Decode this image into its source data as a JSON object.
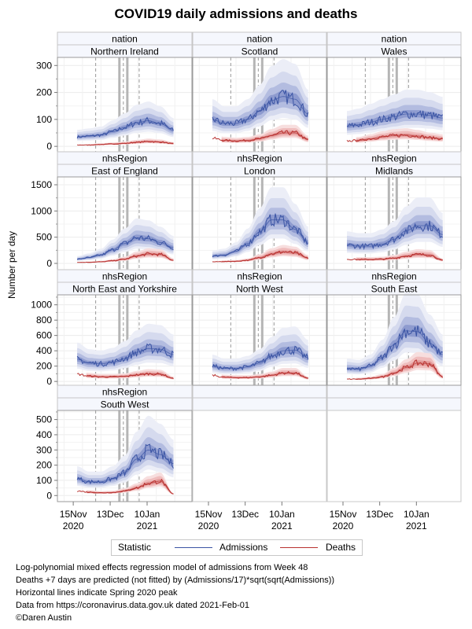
{
  "chart_data": {
    "type": "line",
    "title": "COVID19 daily admissions and deaths",
    "ylabel": "Number per day",
    "xlabel": "",
    "x_ticks": [
      {
        "line1": "15Nov",
        "line2": "2020",
        "day": 0
      },
      {
        "line1": "13Dec",
        "line2": "",
        "day": 28
      },
      {
        "line1": "10Jan",
        "line2": "2021",
        "day": 56
      }
    ],
    "x_range_days": [
      -12,
      90
    ],
    "data_start_day": 3,
    "data_end_day": 76,
    "reference_lines": [
      {
        "day": 17,
        "style": "dashed"
      },
      {
        "day": 35,
        "style": "thick"
      },
      {
        "day": 38,
        "style": "dashed"
      },
      {
        "day": 41,
        "style": "thick"
      },
      {
        "day": 50,
        "style": "dashed"
      }
    ],
    "grid": true,
    "legend": {
      "title": "Statistic",
      "position": "bottom",
      "entries": [
        {
          "name": "Admissions",
          "color": "#3a54a4"
        },
        {
          "name": "Deaths",
          "color": "#b8312f"
        }
      ]
    },
    "panels": [
      {
        "group": "nation",
        "name": "Northern Ireland",
        "row": 0,
        "col": 0,
        "ylim": [
          -20,
          330
        ],
        "yticks": [
          0,
          100,
          200,
          300
        ],
        "admissions_knots": [
          35,
          38,
          42,
          55,
          70,
          88,
          95,
          85,
          60
        ],
        "deaths_knots": [
          5,
          5,
          7,
          9,
          11,
          15,
          18,
          16,
          10
        ]
      },
      {
        "group": "nation",
        "name": "Scotland",
        "row": 0,
        "col": 1,
        "ylim": [
          -20,
          330
        ],
        "yticks": [
          0,
          100,
          200,
          300
        ],
        "admissions_knots": [
          100,
          85,
          85,
          100,
          130,
          170,
          185,
          175,
          120
        ],
        "deaths_knots": [
          30,
          22,
          20,
          22,
          28,
          40,
          50,
          50,
          25
        ]
      },
      {
        "group": "nation",
        "name": "Wales",
        "row": 0,
        "col": 2,
        "ylim": [
          -20,
          330
        ],
        "yticks": [
          0,
          100,
          200,
          300
        ],
        "admissions_knots": [
          75,
          80,
          90,
          100,
          110,
          120,
          120,
          115,
          105
        ],
        "deaths_knots": [
          20,
          22,
          28,
          35,
          40,
          42,
          38,
          32,
          28
        ]
      },
      {
        "group": "nhsRegion",
        "name": "East of England",
        "row": 1,
        "col": 0,
        "ylim": [
          -120,
          1650
        ],
        "yticks": [
          0,
          500,
          1000,
          1500
        ],
        "admissions_knots": [
          80,
          110,
          160,
          260,
          380,
          490,
          470,
          400,
          300
        ],
        "deaths_knots": [
          20,
          22,
          30,
          50,
          80,
          140,
          180,
          170,
          60
        ]
      },
      {
        "group": "nhsRegion",
        "name": "London",
        "row": 1,
        "col": 1,
        "ylim": [
          -120,
          1650
        ],
        "yticks": [
          0,
          500,
          1000,
          1500
        ],
        "admissions_knots": [
          140,
          160,
          230,
          380,
          600,
          830,
          830,
          650,
          400
        ],
        "deaths_knots": [
          30,
          35,
          40,
          60,
          110,
          180,
          220,
          200,
          100
        ]
      },
      {
        "group": "nhsRegion",
        "name": "Midlands",
        "row": 1,
        "col": 2,
        "ylim": [
          -120,
          1650
        ],
        "yticks": [
          0,
          500,
          1000,
          1500
        ],
        "admissions_knots": [
          350,
          330,
          330,
          370,
          460,
          620,
          720,
          720,
          550
        ],
        "deaths_knots": [
          80,
          75,
          75,
          80,
          100,
          140,
          170,
          160,
          60
        ]
      },
      {
        "group": "nhsRegion",
        "name": "North East and Yorkshire",
        "row": 2,
        "col": 0,
        "ylim": [
          -50,
          1130
        ],
        "yticks": [
          0,
          200,
          400,
          600,
          800,
          1000
        ],
        "admissions_knots": [
          290,
          240,
          230,
          250,
          300,
          380,
          430,
          420,
          350
        ],
        "deaths_knots": [
          95,
          70,
          60,
          60,
          65,
          85,
          100,
          95,
          40
        ]
      },
      {
        "group": "nhsRegion",
        "name": "North West",
        "row": 2,
        "col": 1,
        "ylim": [
          -50,
          1130
        ],
        "yticks": [
          0,
          200,
          400,
          600,
          800,
          1000
        ],
        "admissions_knots": [
          200,
          170,
          170,
          190,
          240,
          330,
          400,
          410,
          310
        ],
        "deaths_knots": [
          80,
          55,
          50,
          50,
          60,
          80,
          110,
          110,
          40
        ]
      },
      {
        "group": "nhsRegion",
        "name": "South East",
        "row": 2,
        "col": 2,
        "ylim": [
          -50,
          1130
        ],
        "yticks": [
          0,
          200,
          400,
          600,
          800,
          1000
        ],
        "admissions_knots": [
          170,
          160,
          200,
          310,
          480,
          660,
          650,
          500,
          350
        ],
        "deaths_knots": [
          30,
          30,
          40,
          60,
          110,
          180,
          240,
          230,
          60
        ]
      },
      {
        "group": "nhsRegion",
        "name": "South West",
        "row": 3,
        "col": 0,
        "ylim": [
          -40,
          560
        ],
        "yticks": [
          0,
          100,
          200,
          300,
          400,
          500
        ],
        "admissions_knots": [
          110,
          90,
          90,
          110,
          150,
          240,
          300,
          270,
          210
        ],
        "deaths_knots": [
          30,
          22,
          18,
          20,
          30,
          50,
          80,
          95,
          10
        ]
      }
    ],
    "knot_days": [
      3,
      12,
      21,
      30,
      39,
      48,
      57,
      66,
      76
    ]
  },
  "notes": [
    "Log-polynomial mixed effects regression model of admissions from Week 48",
    "Deaths +7 days are predicted (not fitted) by (Admissions/17)*sqrt(sqrt(Admissions))",
    "Horizontal lines indicate Spring 2020 peak",
    "Data from https://coronavirus.data.gov.uk dated 2021-Feb-01",
    "©Daren Austin"
  ]
}
